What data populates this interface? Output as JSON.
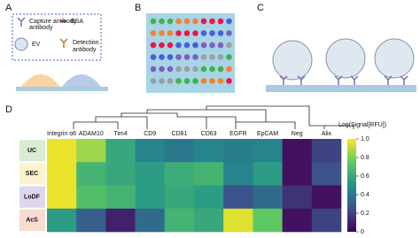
{
  "panels": {
    "a": {
      "label": "A",
      "legend": [
        "Capture antibody",
        "BSA",
        "EV",
        "Detection antibody"
      ]
    },
    "b": {
      "label": "B"
    },
    "c": {
      "label": "C"
    },
    "d": {
      "label": "D",
      "heatmap": {
        "columns": [
          "Integrin α6",
          "ADAM10",
          "Tim4",
          "CD9",
          "CD81",
          "CD63",
          "EGFR",
          "EpCAM",
          "Neg",
          "Alix"
        ],
        "rows": [
          "UC",
          "SEC",
          "LoDF",
          "AcS"
        ],
        "values": [
          [
            0.97,
            0.85,
            0.6,
            0.45,
            0.4,
            0.45,
            0.42,
            0.45,
            0.05,
            0.2
          ],
          [
            0.97,
            0.65,
            0.6,
            0.55,
            0.62,
            0.65,
            0.45,
            0.55,
            0.05,
            0.25
          ],
          [
            0.97,
            0.7,
            0.65,
            0.55,
            0.6,
            0.55,
            0.25,
            0.35,
            0.15,
            0.05
          ],
          [
            0.55,
            0.3,
            0.1,
            0.35,
            0.65,
            0.6,
            0.95,
            0.75,
            0.05,
            0.2
          ]
        ],
        "colorbar": {
          "title": "Log(Signal[RFU])",
          "lim": [
            0,
            1
          ],
          "ticks": [
            0,
            0.2,
            0.4,
            0.6,
            0.8,
            {
              "value": 1,
              "label": "1.0"
            }
          ]
        }
      }
    }
  }
}
